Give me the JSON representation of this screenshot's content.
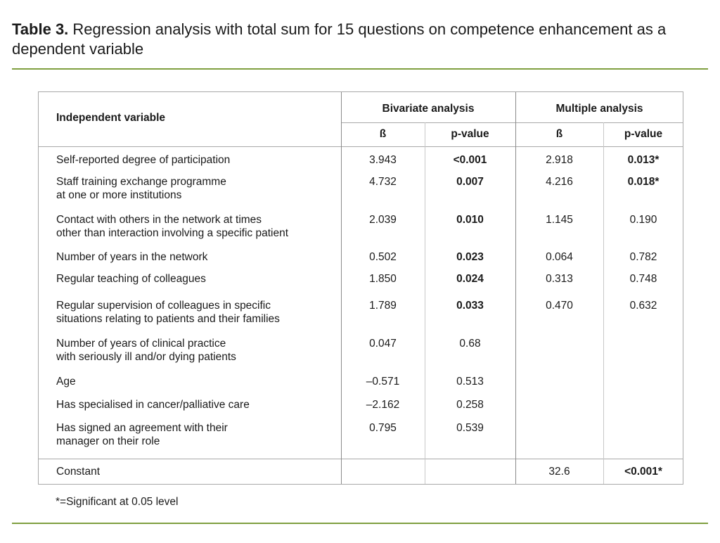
{
  "title": {
    "label": "Table 3.",
    "text": " Regression analysis with total sum for 15 questions on competence enhancement as a dependent variable"
  },
  "header": {
    "independent_variable": "Independent variable",
    "bivariate": "Bivariate analysis",
    "multiple": "Multiple analysis",
    "beta": "ß",
    "pvalue": "p-value"
  },
  "rows": [
    {
      "label": [
        "Self-reported degree of participation"
      ],
      "bi_b": "3.943",
      "bi_p": "<0.001",
      "bi_p_bold": true,
      "mu_b": "2.918",
      "mu_p": "0.013*",
      "mu_p_bold": true
    },
    {
      "label": [
        "Staff training exchange programme",
        "at one or more institutions"
      ],
      "bi_b": "4.732",
      "bi_p": "0.007",
      "bi_p_bold": true,
      "mu_b": "4.216",
      "mu_p": "0.018*",
      "mu_p_bold": true
    },
    {
      "label": [
        "Contact with others in the network at times",
        "other than interaction involving a specific patient"
      ],
      "bi_b": "2.039",
      "bi_p": "0.010",
      "bi_p_bold": true,
      "mu_b": "1.145",
      "mu_p": "0.190",
      "mu_p_bold": false
    },
    {
      "label": [
        "Number of years in the network"
      ],
      "bi_b": "0.502",
      "bi_p": "0.023",
      "bi_p_bold": true,
      "mu_b": "0.064",
      "mu_p": "0.782",
      "mu_p_bold": false
    },
    {
      "label": [
        "Regular teaching of colleagues"
      ],
      "bi_b": "1.850",
      "bi_p": "0.024",
      "bi_p_bold": true,
      "mu_b": "0.313",
      "mu_p": "0.748",
      "mu_p_bold": false
    },
    {
      "label": [
        "Regular supervision of colleagues in specific",
        "situations relating to patients and their families"
      ],
      "bi_b": "1.789",
      "bi_p": "0.033",
      "bi_p_bold": true,
      "mu_b": "0.470",
      "mu_p": "0.632",
      "mu_p_bold": false
    },
    {
      "label": [
        "Number of years of clinical practice",
        "with seriously ill and/or dying patients"
      ],
      "bi_b": "0.047",
      "bi_p": "0.68",
      "bi_p_bold": false,
      "mu_b": "",
      "mu_p": "",
      "mu_p_bold": false
    },
    {
      "label": [
        "Age"
      ],
      "bi_b": "–0.571",
      "bi_p": "0.513",
      "bi_p_bold": false,
      "mu_b": "",
      "mu_p": "",
      "mu_p_bold": false
    },
    {
      "label": [
        "Has specialised in cancer/palliative care"
      ],
      "bi_b": "–2.162",
      "bi_p": "0.258",
      "bi_p_bold": false,
      "mu_b": "",
      "mu_p": "",
      "mu_p_bold": false
    },
    {
      "label": [
        "Has signed an agreement with their",
        "manager on their role"
      ],
      "bi_b": "0.795",
      "bi_p": "0.539",
      "bi_p_bold": false,
      "mu_b": "",
      "mu_p": "",
      "mu_p_bold": false
    }
  ],
  "constant": {
    "label": "Constant",
    "mu_b": "32.6",
    "mu_p": "<0.001*"
  },
  "footnote": "*=Significant at 0.05 level",
  "colors": {
    "rule": "#7f9f3f"
  }
}
